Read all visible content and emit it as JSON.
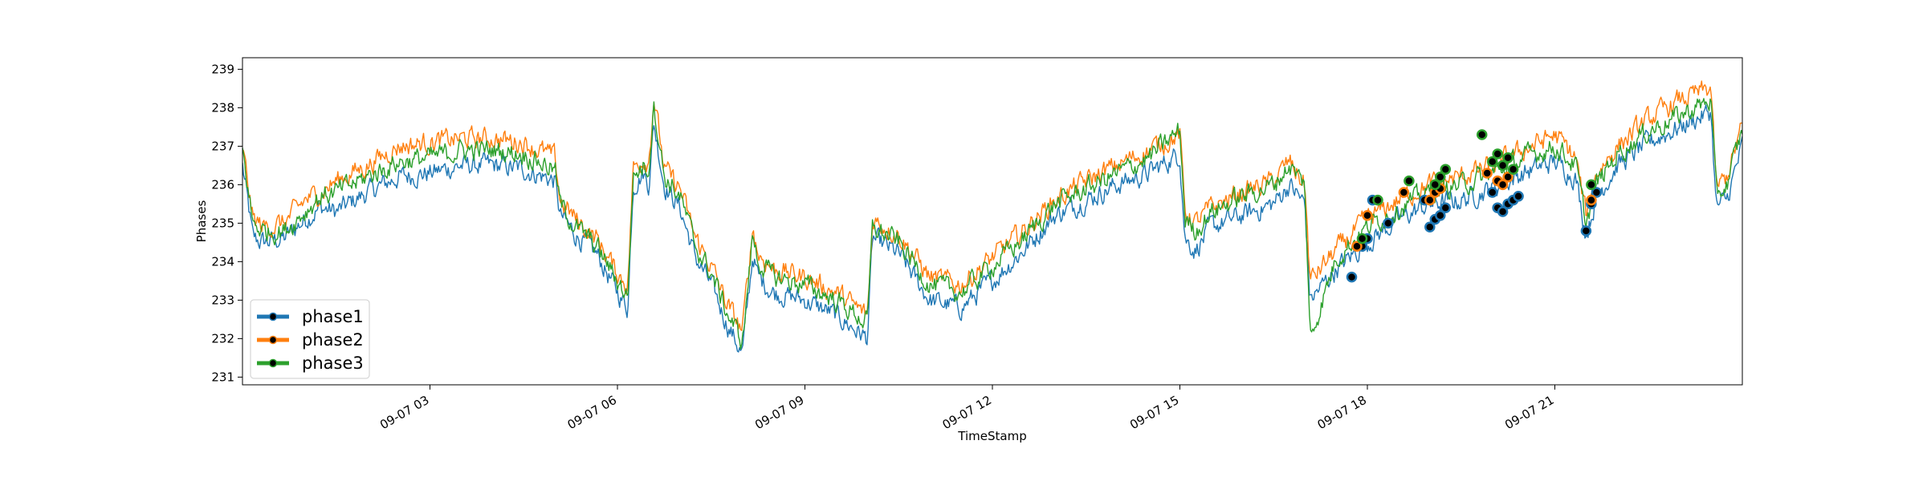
{
  "chart_data": {
    "type": "line",
    "xlabel": "TimeStamp",
    "ylabel": "Phases",
    "xlim": [
      "09-07 00:00",
      "09-08 00:00"
    ],
    "ylim": [
      230.8,
      239.3
    ],
    "grid": false,
    "legend_position": "lower-left",
    "x_ticks": [
      {
        "hour": 3,
        "label": "09-07 03"
      },
      {
        "hour": 6,
        "label": "09-07 06"
      },
      {
        "hour": 9,
        "label": "09-07 09"
      },
      {
        "hour": 12,
        "label": "09-07 12"
      },
      {
        "hour": 15,
        "label": "09-07 15"
      },
      {
        "hour": 18,
        "label": "09-07 18"
      },
      {
        "hour": 21,
        "label": "09-07 21"
      }
    ],
    "y_ticks": [
      231,
      232,
      233,
      234,
      235,
      236,
      237,
      238,
      239
    ],
    "x": [
      "00:00",
      "00:10",
      "00:20",
      "00:40",
      "01:00",
      "01:15",
      "01:30",
      "02:00",
      "02:30",
      "03:00",
      "03:30",
      "04:00",
      "04:30",
      "05:00",
      "05:05",
      "05:20",
      "05:40",
      "06:00",
      "06:10",
      "06:15",
      "06:25",
      "06:30",
      "06:35",
      "06:45",
      "07:00",
      "07:15",
      "07:30",
      "07:45",
      "08:00",
      "08:10",
      "08:15",
      "08:30",
      "09:00",
      "09:30",
      "10:00",
      "10:05",
      "10:30",
      "11:00",
      "11:30",
      "12:00",
      "12:30",
      "13:00",
      "13:30",
      "14:00",
      "14:30",
      "15:00",
      "15:05",
      "15:15",
      "15:30",
      "16:00",
      "16:30",
      "16:45",
      "17:00",
      "17:05",
      "17:30",
      "18:00",
      "18:30",
      "19:00",
      "19:30",
      "20:00",
      "20:30",
      "21:00",
      "21:20",
      "21:30",
      "21:40",
      "22:00",
      "22:30",
      "23:00",
      "23:30",
      "23:35",
      "23:45",
      "24:00"
    ],
    "series": [
      {
        "name": "phase1",
        "color": "#1f77b4",
        "values": [
          236.5,
          234.6,
          234.5,
          234.6,
          235.1,
          235.4,
          235.3,
          235.8,
          236.2,
          236.3,
          236.5,
          236.5,
          236.4,
          236.1,
          235.2,
          234.7,
          234.2,
          233.2,
          232.8,
          236.0,
          236.3,
          236.0,
          237.6,
          236.0,
          235.4,
          234.1,
          233.4,
          232.4,
          231.6,
          234.2,
          233.6,
          233.2,
          233.0,
          232.6,
          232.0,
          234.6,
          234.2,
          233.0,
          232.8,
          233.5,
          234.3,
          235.2,
          235.6,
          236.0,
          236.3,
          236.8,
          234.6,
          234.3,
          234.9,
          235.2,
          235.5,
          236.0,
          235.5,
          233.0,
          233.8,
          234.5,
          235.1,
          235.5,
          235.6,
          235.9,
          236.3,
          236.6,
          236.2,
          234.7,
          235.7,
          236.5,
          237.1,
          237.5,
          237.9,
          235.4,
          235.6,
          237.0
        ]
      },
      {
        "name": "phase2",
        "color": "#ff7f0e",
        "values": [
          237.0,
          235.1,
          234.9,
          235.0,
          235.6,
          235.8,
          236.1,
          236.5,
          237.0,
          237.1,
          237.2,
          237.2,
          237.1,
          236.7,
          235.6,
          235.1,
          234.6,
          233.7,
          233.4,
          236.4,
          236.7,
          236.6,
          238.3,
          236.4,
          235.9,
          234.6,
          233.9,
          232.9,
          232.2,
          234.9,
          234.2,
          233.8,
          233.6,
          233.2,
          232.6,
          235.1,
          234.7,
          233.6,
          233.4,
          234.1,
          234.8,
          235.6,
          236.1,
          236.5,
          236.9,
          237.3,
          235.3,
          235.0,
          235.4,
          235.8,
          236.1,
          236.6,
          236.0,
          233.5,
          234.3,
          235.1,
          235.6,
          236.0,
          236.2,
          236.5,
          236.9,
          237.3,
          236.7,
          235.2,
          236.3,
          237.0,
          237.7,
          238.2,
          238.5,
          235.9,
          236.2,
          237.5
        ]
      },
      {
        "name": "phase3",
        "color": "#2ca02c",
        "values": [
          236.9,
          235.0,
          234.8,
          234.8,
          235.3,
          235.7,
          235.8,
          236.2,
          236.6,
          236.7,
          236.9,
          236.9,
          236.8,
          236.4,
          235.5,
          234.9,
          234.4,
          233.5,
          233.1,
          236.2,
          236.5,
          236.4,
          238.1,
          236.2,
          235.7,
          234.4,
          233.7,
          232.7,
          231.9,
          234.7,
          234.0,
          233.6,
          233.4,
          233.0,
          232.4,
          234.9,
          234.5,
          233.4,
          233.2,
          233.9,
          234.6,
          235.5,
          235.9,
          236.3,
          236.7,
          237.4,
          235.1,
          234.8,
          235.3,
          235.7,
          236.0,
          236.5,
          236.0,
          232.0,
          234.1,
          234.9,
          235.4,
          235.8,
          236.0,
          236.3,
          236.7,
          237.0,
          236.5,
          235.0,
          236.0,
          236.8,
          237.4,
          237.8,
          238.2,
          235.7,
          236.0,
          237.4
        ]
      }
    ],
    "markers": [
      {
        "series": "phase1",
        "points": [
          [
            "17:45",
            233.6
          ],
          [
            "17:55",
            234.4
          ],
          [
            "18:00",
            234.6
          ],
          [
            "18:05",
            235.6
          ],
          [
            "18:20",
            235.0
          ],
          [
            "18:55",
            235.6
          ],
          [
            "19:00",
            234.9
          ],
          [
            "19:05",
            235.1
          ],
          [
            "19:10",
            235.2
          ],
          [
            "19:15",
            235.4
          ],
          [
            "20:00",
            235.8
          ],
          [
            "20:05",
            235.4
          ],
          [
            "20:10",
            235.3
          ],
          [
            "20:15",
            235.5
          ],
          [
            "20:20",
            235.6
          ],
          [
            "20:25",
            235.7
          ],
          [
            "21:30",
            234.8
          ],
          [
            "21:35",
            235.5
          ],
          [
            "21:40",
            235.8
          ]
        ]
      },
      {
        "series": "phase2",
        "points": [
          [
            "17:50",
            234.4
          ],
          [
            "18:00",
            235.2
          ],
          [
            "18:35",
            235.8
          ],
          [
            "19:00",
            235.6
          ],
          [
            "19:05",
            235.8
          ],
          [
            "19:10",
            235.9
          ],
          [
            "19:55",
            236.3
          ],
          [
            "20:05",
            236.1
          ],
          [
            "20:10",
            236.0
          ],
          [
            "20:15",
            236.2
          ],
          [
            "21:35",
            235.6
          ]
        ]
      },
      {
        "series": "phase3",
        "points": [
          [
            "17:55",
            234.6
          ],
          [
            "18:10",
            235.6
          ],
          [
            "18:40",
            236.1
          ],
          [
            "19:05",
            236.0
          ],
          [
            "19:10",
            236.2
          ],
          [
            "19:15",
            236.4
          ],
          [
            "19:50",
            237.3
          ],
          [
            "20:00",
            236.6
          ],
          [
            "20:05",
            236.8
          ],
          [
            "20:10",
            236.5
          ],
          [
            "20:15",
            236.7
          ],
          [
            "20:20",
            236.4
          ],
          [
            "21:35",
            236.0
          ]
        ]
      }
    ]
  }
}
